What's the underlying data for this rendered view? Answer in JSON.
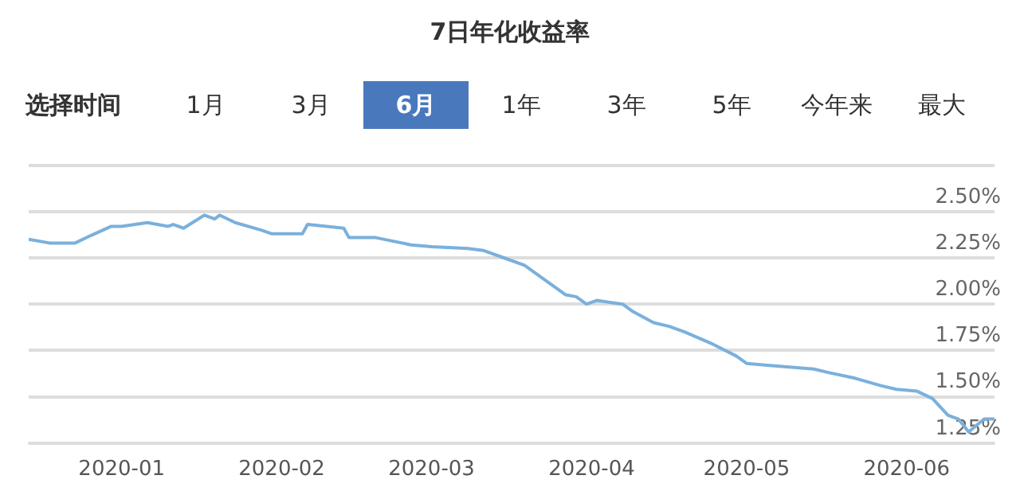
{
  "chart_data": {
    "type": "line",
    "title": "7日年化收益率",
    "annotations": [
      "选择时间",
      "1月",
      "3月",
      "6月",
      "1年",
      "3年",
      "5年",
      "今年来",
      "最大"
    ],
    "x": [
      "2019-12-14",
      "2019-12-18",
      "2019-12-23",
      "2019-12-26",
      "2019-12-30",
      "2020-01-01",
      "2020-01-06",
      "2020-01-10",
      "2020-01-11",
      "2020-01-13",
      "2020-01-17",
      "2020-01-19",
      "2020-01-20",
      "2020-01-23",
      "2020-01-28",
      "2020-01-30",
      "2020-02-05",
      "2020-02-06",
      "2020-02-13",
      "2020-02-14",
      "2020-02-19",
      "2020-02-26",
      "2020-03-01",
      "2020-03-08",
      "2020-03-11",
      "2020-03-15",
      "2020-03-19",
      "2020-03-22",
      "2020-03-27",
      "2020-03-29",
      "2020-03-31",
      "2020-04-02",
      "2020-04-07",
      "2020-04-09",
      "2020-04-13",
      "2020-04-16",
      "2020-04-19",
      "2020-04-24",
      "2020-04-29",
      "2020-05-01",
      "2020-05-05",
      "2020-05-14",
      "2020-05-17",
      "2020-05-22",
      "2020-05-27",
      "2020-05-30",
      "2020-06-03",
      "2020-06-06",
      "2020-06-09",
      "2020-06-11",
      "2020-06-13",
      "2020-06-16",
      "2020-06-18"
    ],
    "series": [
      {
        "color": "#7ab0dc",
        "values": [
          2.35,
          2.33,
          2.33,
          2.37,
          2.42,
          2.42,
          2.44,
          2.42,
          2.43,
          2.41,
          2.48,
          2.46,
          2.48,
          2.44,
          2.4,
          2.38,
          2.38,
          2.43,
          2.41,
          2.36,
          2.36,
          2.32,
          2.31,
          2.3,
          2.29,
          2.25,
          2.21,
          2.15,
          2.05,
          2.04,
          2.0,
          2.02,
          2.0,
          1.96,
          1.9,
          1.88,
          1.85,
          1.79,
          1.72,
          1.68,
          1.67,
          1.65,
          1.63,
          1.6,
          1.56,
          1.54,
          1.53,
          1.49,
          1.4,
          1.38,
          1.31,
          1.38,
          1.38
        ]
      }
    ],
    "xlim": [
      "2019-12-14",
      "2020-06-18"
    ],
    "xticks": [
      {
        "value": "2020-01-01",
        "label": "2020-01"
      },
      {
        "value": "2020-02-01",
        "label": "2020-02"
      },
      {
        "value": "2020-03-01",
        "label": "2020-03"
      },
      {
        "value": "2020-04-01",
        "label": "2020-04"
      },
      {
        "value": "2020-05-01",
        "label": "2020-05"
      },
      {
        "value": "2020-06-01",
        "label": "2020-06"
      }
    ],
    "ylim": [
      1.25,
      2.75
    ],
    "yticks": [
      {
        "value": 1.25,
        "label": "1.25%"
      },
      {
        "value": 1.5,
        "label": "1.50%"
      },
      {
        "value": 1.75,
        "label": "1.75%"
      },
      {
        "value": 2.0,
        "label": "2.00%"
      },
      {
        "value": 2.25,
        "label": "2.25%"
      },
      {
        "value": 2.5,
        "label": "2.50%"
      },
      {
        "value": 2.75,
        "label": null
      }
    ],
    "grid": "y",
    "marker": "none",
    "line_style": "solid",
    "legend": false
  }
}
